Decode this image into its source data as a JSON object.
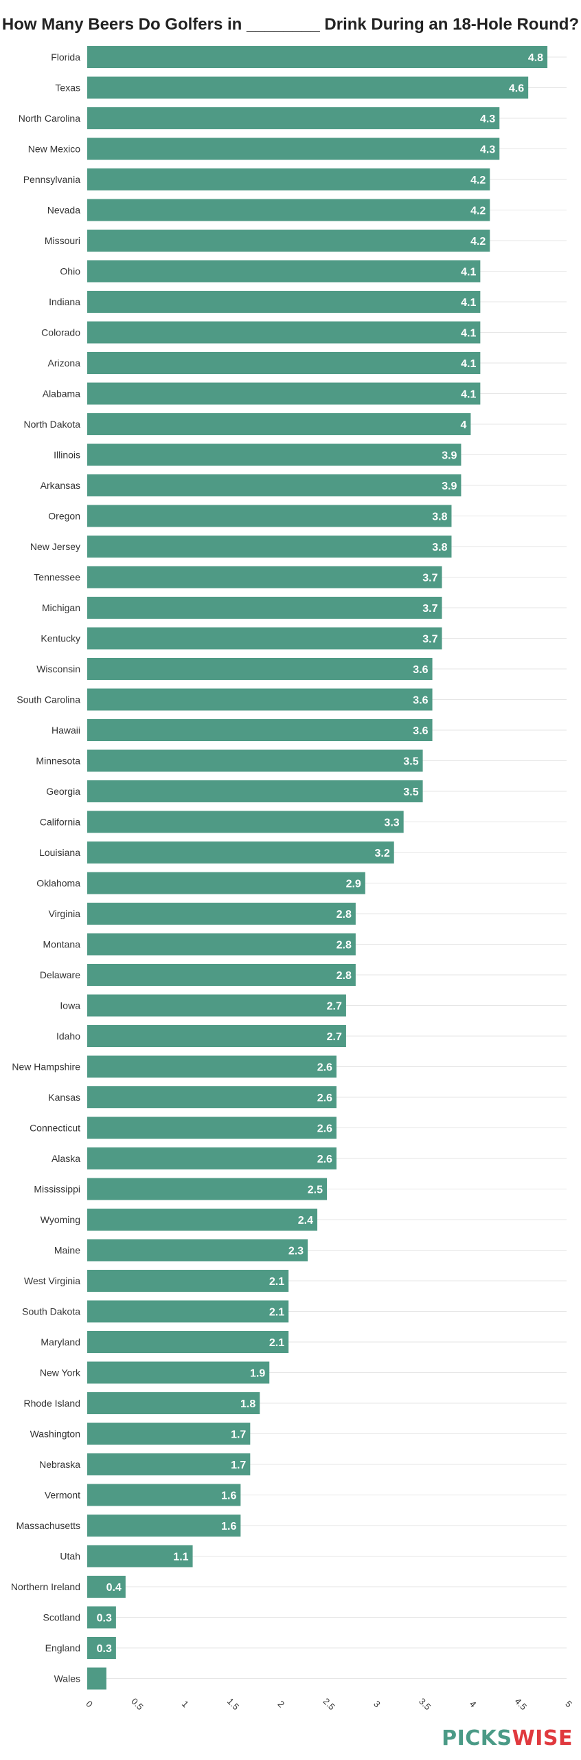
{
  "chart_data": {
    "type": "bar",
    "orientation": "horizontal",
    "title": "How Many Beers Do Golfers in ________ Drink During an 18-Hole Round?",
    "categories": [
      "Florida",
      "Texas",
      "North Carolina",
      "New Mexico",
      "Pennsylvania",
      "Nevada",
      "Missouri",
      "Ohio",
      "Indiana",
      "Colorado",
      "Arizona",
      "Alabama",
      "North Dakota",
      "Illinois",
      "Arkansas",
      "Oregon",
      "New Jersey",
      "Tennessee",
      "Michigan",
      "Kentucky",
      "Wisconsin",
      "South Carolina",
      "Hawaii",
      "Minnesota",
      "Georgia",
      "California",
      "Louisiana",
      "Oklahoma",
      "Virginia",
      "Montana",
      "Delaware",
      "Iowa",
      "Idaho",
      "New Hampshire",
      "Kansas",
      "Connecticut",
      "Alaska",
      "Mississippi",
      "Wyoming",
      "Maine",
      "West Virginia",
      "South Dakota",
      "Maryland",
      "New York",
      "Rhode Island",
      "Washington",
      "Nebraska",
      "Vermont",
      "Massachusetts",
      "Utah",
      "Northern Ireland",
      "Scotland",
      "England",
      "Wales"
    ],
    "values": [
      4.8,
      4.6,
      4.3,
      4.3,
      4.2,
      4.2,
      4.2,
      4.1,
      4.1,
      4.1,
      4.1,
      4.1,
      4,
      3.9,
      3.9,
      3.8,
      3.8,
      3.7,
      3.7,
      3.7,
      3.6,
      3.6,
      3.6,
      3.5,
      3.5,
      3.3,
      3.2,
      2.9,
      2.8,
      2.8,
      2.8,
      2.7,
      2.7,
      2.6,
      2.6,
      2.6,
      2.6,
      2.5,
      2.4,
      2.3,
      2.1,
      2.1,
      2.1,
      1.9,
      1.8,
      1.7,
      1.7,
      1.6,
      1.6,
      1.1,
      0.4,
      0.3,
      0.3,
      0.2
    ],
    "data_labels": [
      "4.8",
      "4.6",
      "4.3",
      "4.3",
      "4.2",
      "4.2",
      "4.2",
      "4.1",
      "4.1",
      "4.1",
      "4.1",
      "4.1",
      "4",
      "3.9",
      "3.9",
      "3.8",
      "3.8",
      "3.7",
      "3.7",
      "3.7",
      "3.6",
      "3.6",
      "3.6",
      "3.5",
      "3.5",
      "3.3",
      "3.2",
      "2.9",
      "2.8",
      "2.8",
      "2.8",
      "2.7",
      "2.7",
      "2.6",
      "2.6",
      "2.6",
      "2.6",
      "2.5",
      "2.4",
      "2.3",
      "2.1",
      "2.1",
      "2.1",
      "1.9",
      "1.8",
      "1.7",
      "1.7",
      "1.6",
      "1.6",
      "1.1",
      "0.4",
      "0.3",
      "0.3",
      ""
    ],
    "xticks": [
      0,
      0.5,
      1,
      1.5,
      2,
      2.5,
      3,
      3.5,
      4,
      4.5,
      5
    ],
    "xtick_labels": [
      "0",
      "0.5",
      "1",
      "1.5",
      "2",
      "2.5",
      "3",
      "3.5",
      "4",
      "4.5",
      "5"
    ],
    "xlim": [
      0,
      5
    ],
    "xlabel": "",
    "ylabel": "",
    "grid": true,
    "legend": "none",
    "colors": {
      "bar": "#4f9a85",
      "grid": "#e6e6e6",
      "label": "#ffffff",
      "axis_text": "#333333"
    }
  },
  "logo": {
    "part1": "PICKS",
    "part2": "WISE"
  }
}
